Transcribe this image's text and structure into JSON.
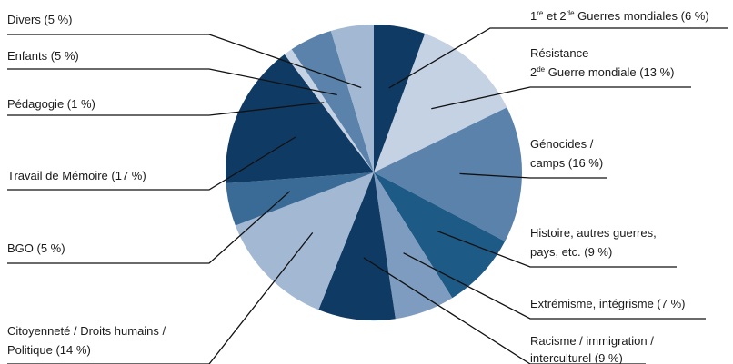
{
  "chart_data": {
    "type": "pie",
    "title": "",
    "slices": [
      {
        "label": "1re et 2de Guerres mondiales (6 %)",
        "value": 6,
        "color": "#0f3a63"
      },
      {
        "label": "Résistance 2de Guerre mondiale (13 %)",
        "value": 13,
        "color": "#c5d2e4"
      },
      {
        "label": "Génocides / camps (16 %)",
        "value": 16,
        "color": "#5a82aa"
      },
      {
        "label": "Histoire, autres guerres, pays, etc. (9 %)",
        "value": 9,
        "color": "#1e5a86"
      },
      {
        "label": "Extrémisme, intégrisme (7 %)",
        "value": 7,
        "color": "#7d9cbf"
      },
      {
        "label": "Racisme / immigration / interculturel (9 %)",
        "value": 9,
        "color": "#0f3a63"
      },
      {
        "label": "Citoyenneté / Droits humains / Politique (14 %)",
        "value": 14,
        "color": "#a2b8d3"
      },
      {
        "label": "BGO (5 %)",
        "value": 5,
        "color": "#3a6b97"
      },
      {
        "label": "Travail de Mémoire (17 %)",
        "value": 17,
        "color": "#0f3a63"
      },
      {
        "label": "Pédagogie (1 %)",
        "value": 1,
        "color": "#c5d2e4"
      },
      {
        "label": "Enfants (5 %)",
        "value": 5,
        "color": "#5a82aa"
      },
      {
        "label": "Divers (5 %)",
        "value": 5,
        "color": "#a2b8d3"
      }
    ]
  },
  "labels": {
    "guerres": {
      "sup1": "re",
      "mid": " et 2",
      "sup2": "de",
      "end": " Guerres mondiales (6 %)"
    },
    "resistance": {
      "line1": "Résistance",
      "line2_pre": "2",
      "line2_sup": "de",
      "line2_end": " Guerre mondiale (13 %)"
    },
    "genocides": {
      "line1": "Génocides /",
      "line2": "camps (16 %)"
    },
    "histoire": {
      "line1": "Histoire, autres guerres,",
      "line2": "pays, etc. (9 %)"
    },
    "extremisme": {
      "line1": "Extrémisme, intégrisme (7 %)"
    },
    "racisme": {
      "line1": "Racisme / immigration /",
      "line2": "interculturel (9 %)"
    },
    "citoyennete": {
      "line1": "Citoyenneté / Droits humains /",
      "line2": "Politique (14 %)"
    },
    "bgo": {
      "line1": "BGO (5 %)"
    },
    "memoire": {
      "line1": "Travail de Mémoire (17 %)"
    },
    "pedagogie": {
      "line1": "Pédagogie (1 %)"
    },
    "enfants": {
      "line1": "Enfants (5 %)"
    },
    "divers": {
      "line1": "Divers (5 %)"
    }
  }
}
